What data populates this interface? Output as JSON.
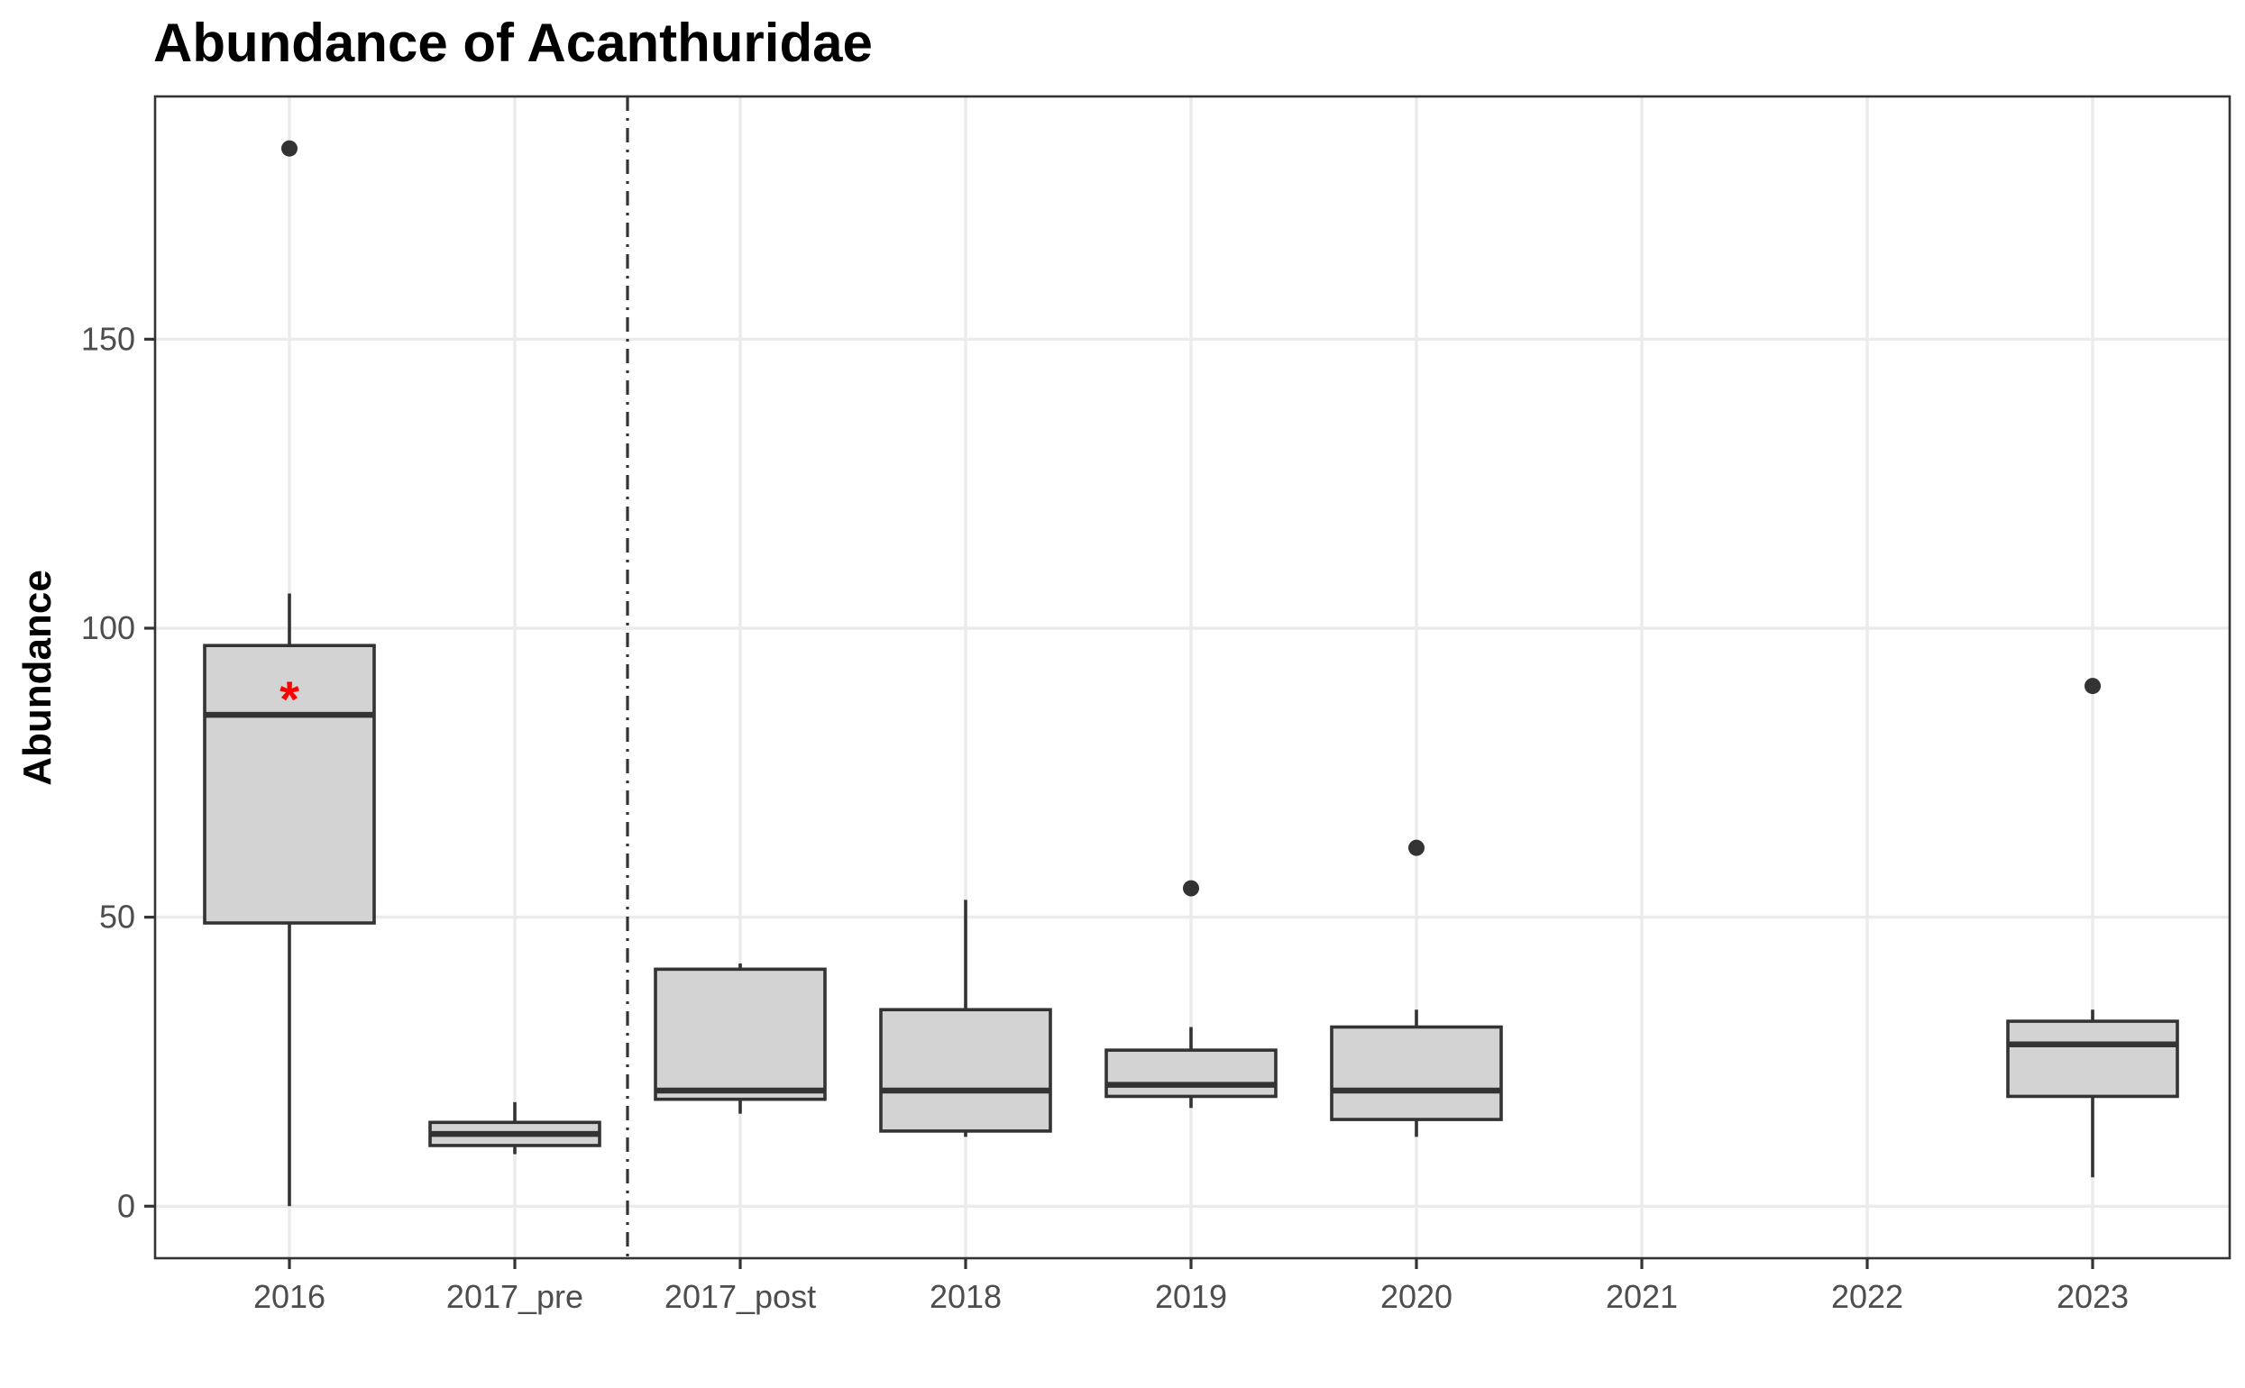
{
  "chart_data": {
    "type": "box",
    "title": "Abundance of Acanthuridae",
    "xlabel": "",
    "ylabel": "Abundance",
    "ylim": [
      -9,
      192
    ],
    "y_ticks": [
      0,
      50,
      100,
      150
    ],
    "grid": true,
    "categories": [
      "2016",
      "2017_pre",
      "2017_post",
      "2018",
      "2019",
      "2020",
      "2021",
      "2022",
      "2023"
    ],
    "boxes": [
      {
        "category": "2016",
        "lower_whisker": 0,
        "q1": 49,
        "median": 85,
        "q3": 97,
        "upper_whisker": 106,
        "outliers": [
          183
        ]
      },
      {
        "category": "2017_pre",
        "lower_whisker": 9,
        "q1": 10.5,
        "median": 12.5,
        "q3": 14.5,
        "upper_whisker": 18,
        "outliers": []
      },
      {
        "category": "2017_post",
        "lower_whisker": 16,
        "q1": 18.5,
        "median": 20,
        "q3": 41,
        "upper_whisker": 42,
        "outliers": []
      },
      {
        "category": "2018",
        "lower_whisker": 12,
        "q1": 13,
        "median": 20,
        "q3": 34,
        "upper_whisker": 53,
        "outliers": []
      },
      {
        "category": "2019",
        "lower_whisker": 17,
        "q1": 19,
        "median": 21,
        "q3": 27,
        "upper_whisker": 31,
        "outliers": [
          55
        ]
      },
      {
        "category": "2020",
        "lower_whisker": 12,
        "q1": 15,
        "median": 20,
        "q3": 31,
        "upper_whisker": 34,
        "outliers": [
          62
        ]
      },
      {
        "category": "2023",
        "lower_whisker": 5,
        "q1": 19,
        "median": 28,
        "q3": 32,
        "upper_whisker": 34,
        "outliers": [
          90
        ]
      }
    ],
    "reference_line": {
      "between": [
        "2017_pre",
        "2017_post"
      ],
      "style": "dot-dash"
    },
    "annotations": [
      {
        "category": "2016",
        "y": 90,
        "text": "*",
        "color": "#ff0000"
      }
    ],
    "box_fill": "#d3d3d3",
    "line_color": "#333333",
    "grid_color": "#ebebeb"
  }
}
